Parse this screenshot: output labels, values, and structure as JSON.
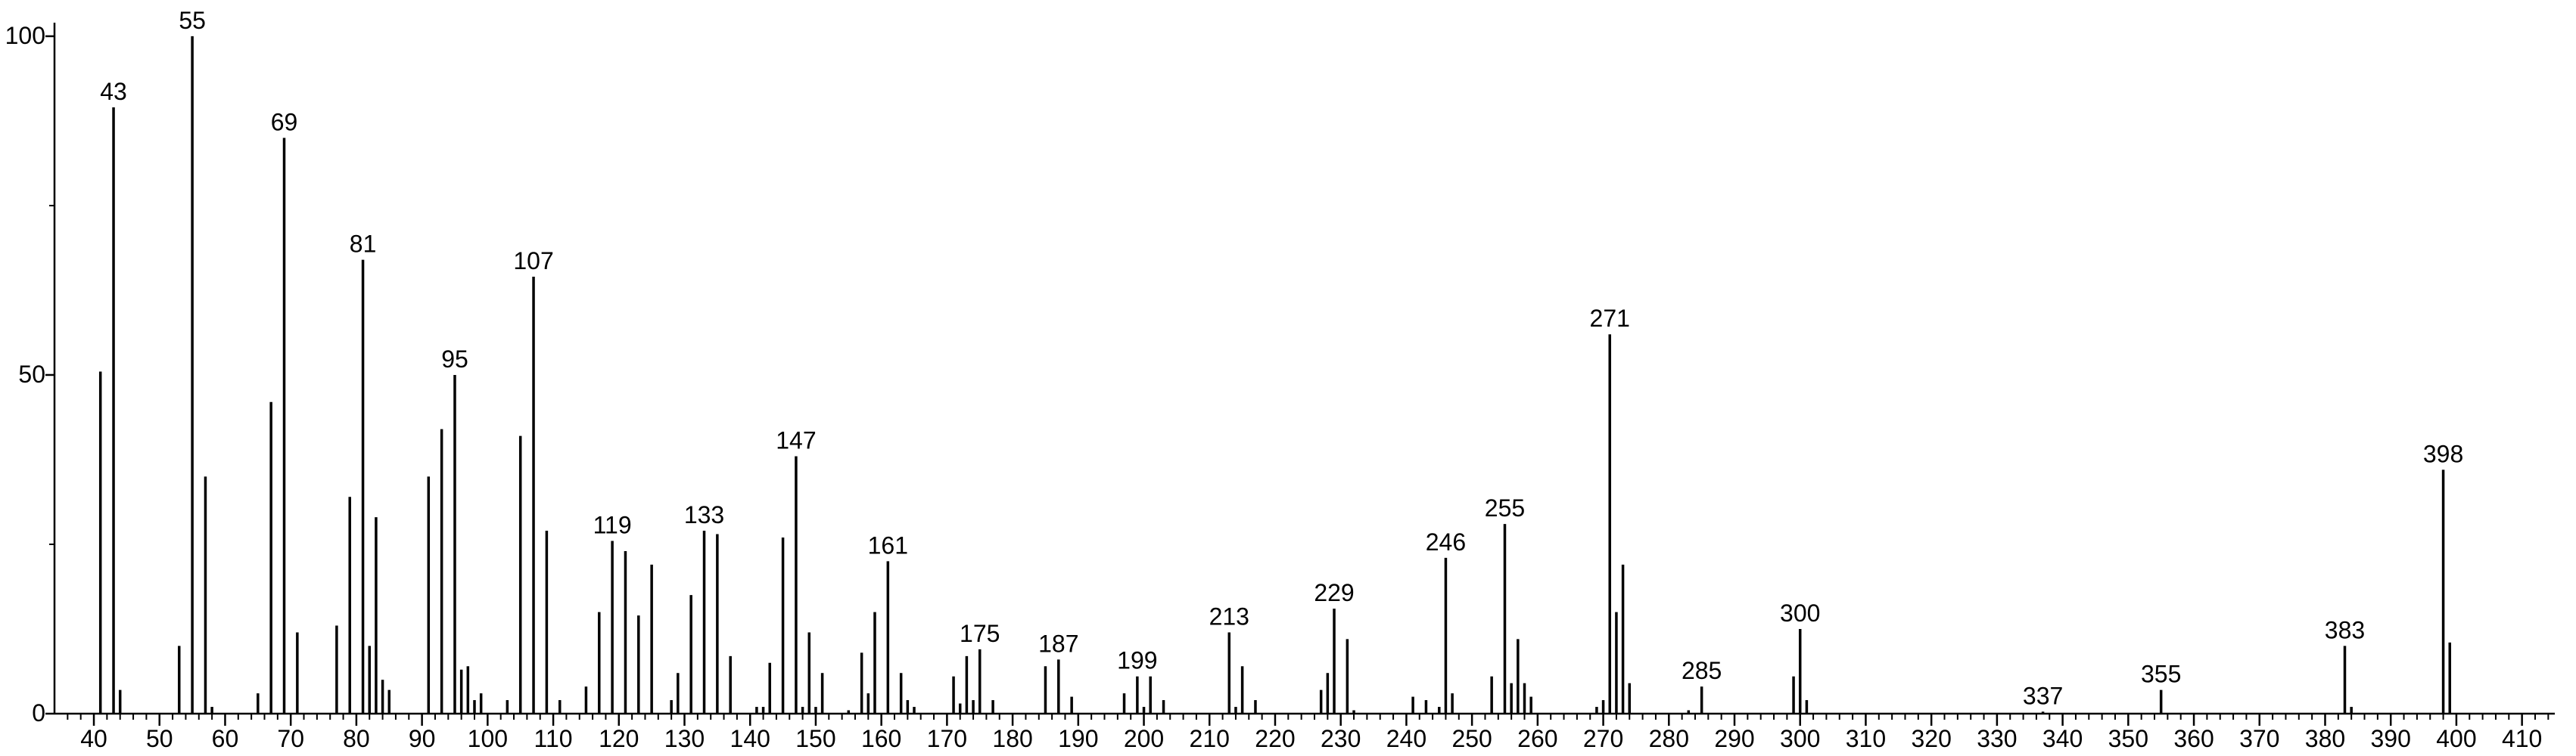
{
  "chart_data": {
    "type": "stick",
    "xlim": [
      34,
      415
    ],
    "ylim": [
      0,
      102
    ],
    "xticks": [
      40,
      50,
      60,
      70,
      80,
      90,
      100,
      110,
      120,
      130,
      140,
      150,
      160,
      170,
      180,
      190,
      200,
      210,
      220,
      230,
      240,
      250,
      260,
      270,
      280,
      290,
      300,
      310,
      320,
      330,
      340,
      350,
      360,
      370,
      380,
      390,
      400,
      410
    ],
    "xminorticks": [
      36,
      38,
      42,
      44,
      46,
      48,
      52,
      54,
      56,
      58,
      62,
      64,
      66,
      68,
      72,
      74,
      76,
      78,
      82,
      84,
      86,
      88,
      92,
      94,
      96,
      98,
      102,
      104,
      106,
      108,
      112,
      114,
      116,
      118,
      122,
      124,
      126,
      128,
      132,
      134,
      136,
      138,
      142,
      144,
      146,
      148,
      152,
      154,
      156,
      158,
      162,
      164,
      166,
      168,
      172,
      174,
      176,
      178,
      182,
      184,
      186,
      188,
      192,
      194,
      196,
      198,
      202,
      204,
      206,
      208,
      212,
      214,
      216,
      218,
      222,
      224,
      226,
      228,
      232,
      234,
      236,
      238,
      242,
      244,
      246,
      248,
      252,
      254,
      256,
      258,
      262,
      264,
      266,
      268,
      272,
      274,
      276,
      278,
      282,
      284,
      286,
      288,
      292,
      294,
      296,
      298,
      302,
      304,
      306,
      308,
      312,
      314,
      316,
      318,
      322,
      324,
      326,
      328,
      332,
      334,
      336,
      338,
      342,
      344,
      346,
      348,
      352,
      354,
      356,
      358,
      362,
      364,
      366,
      368,
      372,
      374,
      376,
      378,
      382,
      384,
      386,
      388,
      392,
      394,
      396,
      398,
      402,
      404,
      406,
      408,
      412,
      414
    ],
    "yticks": [
      0,
      50,
      100
    ],
    "yminorticks": [
      25,
      75
    ],
    "color": "#000000",
    "x": [
      41,
      43,
      44,
      53,
      55,
      57,
      58,
      65,
      67,
      69,
      71,
      77,
      79,
      81,
      82,
      83,
      84,
      85,
      91,
      93,
      95,
      96,
      97,
      98,
      99,
      103,
      105,
      107,
      109,
      111,
      115,
      117,
      119,
      121,
      123,
      125,
      128,
      129,
      131,
      133,
      135,
      137,
      141,
      142,
      143,
      145,
      147,
      148,
      149,
      150,
      151,
      155,
      157,
      158,
      159,
      161,
      163,
      164,
      165,
      171,
      172,
      173,
      174,
      175,
      177,
      185,
      187,
      189,
      197,
      199,
      200,
      201,
      203,
      213,
      214,
      215,
      217,
      227,
      228,
      229,
      231,
      232,
      241,
      243,
      245,
      246,
      247,
      253,
      255,
      256,
      257,
      258,
      259,
      269,
      270,
      271,
      272,
      273,
      274,
      283,
      285,
      299,
      300,
      301,
      337,
      355,
      383,
      384,
      398,
      399
    ],
    "values": [
      50.5,
      89.5,
      3.5,
      10,
      100,
      35,
      1,
      3,
      46,
      85,
      12,
      13,
      32,
      67,
      10,
      29,
      5,
      3.5,
      35,
      42,
      50,
      6.5,
      7,
      2,
      3,
      2,
      41,
      64.5,
      27,
      2,
      4,
      15,
      25.5,
      24,
      14.5,
      22,
      2,
      6,
      17.5,
      27,
      26.5,
      8.5,
      1,
      1,
      7.5,
      26,
      38,
      1,
      12,
      1,
      6,
      0.5,
      9,
      3,
      15,
      22.5,
      6,
      2,
      1,
      5.5,
      1.5,
      8.5,
      2,
      9.5,
      2,
      7,
      8,
      2.5,
      3,
      5.5,
      1,
      5.5,
      2,
      12,
      1,
      7,
      2,
      3.5,
      6,
      15.5,
      11,
      0.5,
      2.5,
      2,
      1,
      23,
      3,
      5.5,
      28,
      4.5,
      11,
      4.5,
      2.5,
      1,
      2,
      56,
      15,
      22,
      4.5,
      0.5,
      4,
      5.5,
      12.5,
      2,
      0.3,
      3.5,
      10,
      1,
      36,
      10.5
    ],
    "peak_labels": [
      43,
      55,
      69,
      81,
      95,
      107,
      119,
      133,
      147,
      161,
      175,
      187,
      199,
      213,
      229,
      246,
      255,
      271,
      285,
      300,
      337,
      355,
      383,
      398
    ]
  }
}
